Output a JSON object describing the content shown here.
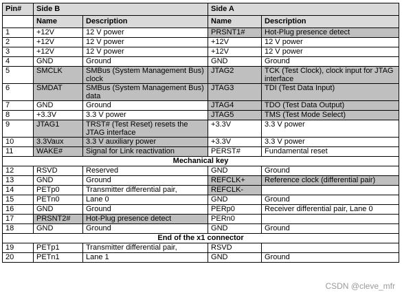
{
  "header": {
    "pin": "Pin#",
    "side_b": "Side B",
    "side_a": "Side A"
  },
  "subheader": {
    "name_b": "Name",
    "desc_b": "Description",
    "name_a": "Name",
    "desc_a": "Description"
  },
  "rows_top": [
    {
      "pin": "1",
      "bname": "+12V",
      "bdesc": "12 V power",
      "aname": "PRSNT1#",
      "adesc": "Hot-Plug presence detect"
    },
    {
      "pin": "2",
      "bname": "+12V",
      "bdesc": "12 V power",
      "aname": "+12V",
      "adesc": "12 V power"
    },
    {
      "pin": "3",
      "bname": "+12V",
      "bdesc": "12 V power",
      "aname": "+12V",
      "adesc": "12 V power"
    },
    {
      "pin": "4",
      "bname": "GND",
      "bdesc": "Ground",
      "aname": "GND",
      "adesc": "Ground"
    },
    {
      "pin": "5",
      "bname": "SMCLK",
      "bdesc": "SMBus (System Management Bus) clock",
      "aname": "JTAG2",
      "adesc": "TCK (Test Clock), clock input for JTAG interface"
    },
    {
      "pin": "6",
      "bname": "SMDAT",
      "bdesc": "SMBus (System Management Bus) data",
      "aname": "JTAG3",
      "adesc": "TDI (Test Data Input)"
    },
    {
      "pin": "7",
      "bname": "GND",
      "bdesc": "Ground",
      "aname": "JTAG4",
      "adesc": "TDO (Test Data Output)"
    },
    {
      "pin": "8",
      "bname": "+3.3V",
      "bdesc": "3.3 V power",
      "aname": "JTAG5",
      "adesc": "TMS (Test Mode Select)"
    },
    {
      "pin": "9",
      "bname": "JTAG1",
      "bdesc": "TRST# (Test Reset) resets the JTAG interface",
      "aname": "+3.3V",
      "adesc": "3.3 V power"
    },
    {
      "pin": "10",
      "bname": "3.3Vaux",
      "bdesc": "3.3 V auxiliary power",
      "aname": "+3.3V",
      "adesc": "3.3 V power"
    },
    {
      "pin": "11",
      "bname": "WAKE#",
      "bdesc": "Signal for Link reactivation",
      "aname": "PERST#",
      "adesc": "Fundamental reset"
    }
  ],
  "section_mechanical": "Mechanical key",
  "rows_mid": [
    {
      "pin": "12",
      "bname": "RSVD",
      "bdesc": "Reserved",
      "aname": "GND",
      "adesc": "Ground"
    },
    {
      "pin": "13",
      "bname": "GND",
      "bdesc": "Ground",
      "aname": "REFCLK+",
      "adesc": "Reference clock (differential pair)"
    },
    {
      "pin": "14",
      "bname": "PETp0",
      "bdesc": "Transmitter differential pair,",
      "aname": "REFCLK-",
      "adesc": ""
    },
    {
      "pin": "15",
      "bname": "PETn0",
      "bdesc": "Lane 0",
      "aname": "GND",
      "adesc": "Ground"
    },
    {
      "pin": "16",
      "bname": "GND",
      "bdesc": "Ground",
      "aname": "PERp0",
      "adesc": "Receiver differential pair, Lane 0"
    },
    {
      "pin": "17",
      "bname": "PRSNT2#",
      "bdesc": "Hot-Plug presence detect",
      "aname": "PERn0",
      "adesc": ""
    },
    {
      "pin": "18",
      "bname": "GND",
      "bdesc": "Ground",
      "aname": "GND",
      "adesc": "Ground"
    }
  ],
  "section_end": "End of the x1 connector",
  "rows_bot": [
    {
      "pin": "19",
      "bname": "PETp1",
      "bdesc": "Transmitter differential pair,",
      "aname": "RSVD",
      "adesc": ""
    },
    {
      "pin": "20",
      "bname": "PETn1",
      "bdesc": "Lane 1",
      "aname": "GND",
      "adesc": "Ground"
    }
  ],
  "watermark": "CSDN @cleve_mfr"
}
